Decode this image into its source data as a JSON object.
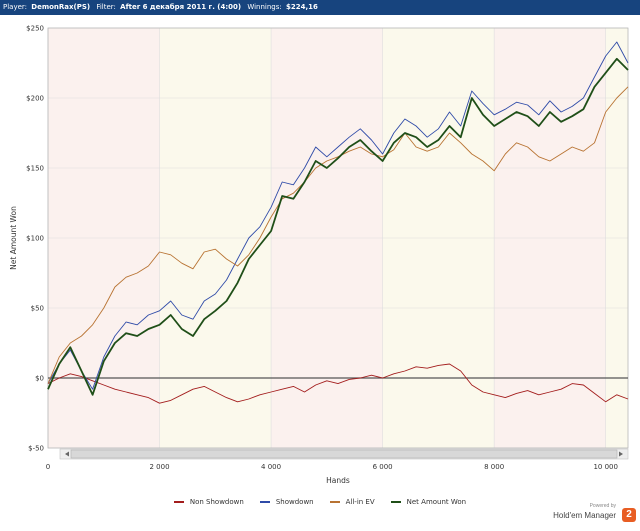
{
  "header": {
    "player_label": "Player:",
    "player_value": "DemonRax(PS)",
    "filter_label": "Filter:",
    "filter_value": "After 6 декабря 2011 г. (4:00)",
    "winnings_label": "Winnings:",
    "winnings_value": "$224,16"
  },
  "branding": {
    "powered_by": "Powered by",
    "product": "Hold'em Manager",
    "badge": "2"
  },
  "chart_data": {
    "type": "line",
    "xlabel": "Hands",
    "ylabel": "Net Amount Won",
    "xlim": [
      0,
      10400
    ],
    "ylim": [
      -50,
      250
    ],
    "x_ticks": [
      {
        "value": 0,
        "label": "0"
      },
      {
        "value": 2000,
        "label": "2 000"
      },
      {
        "value": 4000,
        "label": "4 000"
      },
      {
        "value": 6000,
        "label": "6 000"
      },
      {
        "value": 8000,
        "label": "8 000"
      },
      {
        "value": 10000,
        "label": "10 000"
      }
    ],
    "y_ticks": [
      {
        "value": -50,
        "label": "$-50"
      },
      {
        "value": 0,
        "label": "$0"
      },
      {
        "value": 50,
        "label": "$50"
      },
      {
        "value": 100,
        "label": "$100"
      },
      {
        "value": 150,
        "label": "$150"
      },
      {
        "value": 200,
        "label": "$200"
      },
      {
        "value": 250,
        "label": "$250"
      }
    ],
    "legend_position": "bottom-center",
    "grid": true,
    "series": [
      {
        "name": "Non Showdown",
        "color": "#a31d1d",
        "width": 0.9,
        "x": [
          0,
          200,
          400,
          600,
          800,
          1000,
          1200,
          1400,
          1600,
          1800,
          2000,
          2200,
          2400,
          2600,
          2800,
          3000,
          3200,
          3400,
          3600,
          3800,
          4000,
          4200,
          4400,
          4600,
          4800,
          5000,
          5200,
          5400,
          5600,
          5800,
          6000,
          6200,
          6400,
          6600,
          6800,
          7000,
          7200,
          7400,
          7600,
          7800,
          8000,
          8200,
          8400,
          8600,
          8800,
          9000,
          9200,
          9400,
          9600,
          9800,
          10000,
          10200,
          10400
        ],
        "y": [
          -4,
          0,
          3,
          1,
          -2,
          -5,
          -8,
          -10,
          -12,
          -14,
          -18,
          -16,
          -12,
          -8,
          -6,
          -10,
          -14,
          -17,
          -15,
          -12,
          -10,
          -8,
          -6,
          -10,
          -5,
          -2,
          -4,
          -1,
          0,
          2,
          0,
          3,
          5,
          8,
          7,
          9,
          10,
          5,
          -5,
          -10,
          -12,
          -14,
          -11,
          -9,
          -12,
          -10,
          -8,
          -4,
          -5,
          -11,
          -17,
          -12,
          -15
        ]
      },
      {
        "name": "Showdown",
        "color": "#2f4ba8",
        "width": 0.9,
        "x": [
          0,
          200,
          400,
          600,
          800,
          1000,
          1200,
          1400,
          1600,
          1800,
          2000,
          2200,
          2400,
          2600,
          2800,
          3000,
          3200,
          3400,
          3600,
          3800,
          4000,
          4200,
          4400,
          4600,
          4800,
          5000,
          5200,
          5400,
          5600,
          5800,
          6000,
          6200,
          6400,
          6600,
          6800,
          7000,
          7200,
          7400,
          7600,
          7800,
          8000,
          8200,
          8400,
          8600,
          8800,
          9000,
          9200,
          9400,
          9600,
          9800,
          10000,
          10200,
          10400
        ],
        "y": [
          -4,
          10,
          20,
          5,
          -8,
          15,
          30,
          40,
          38,
          45,
          48,
          55,
          45,
          42,
          55,
          60,
          70,
          85,
          100,
          108,
          122,
          140,
          138,
          150,
          165,
          158,
          165,
          172,
          178,
          170,
          160,
          175,
          185,
          180,
          172,
          178,
          190,
          180,
          205,
          196,
          188,
          192,
          197,
          195,
          188,
          198,
          190,
          194,
          200,
          215,
          230,
          240,
          225
        ]
      },
      {
        "name": "All-in EV",
        "color": "#b87332",
        "width": 0.9,
        "x": [
          0,
          200,
          400,
          600,
          800,
          1000,
          1200,
          1400,
          1600,
          1800,
          2000,
          2200,
          2400,
          2600,
          2800,
          3000,
          3200,
          3400,
          3600,
          3800,
          4000,
          4200,
          4400,
          4600,
          4800,
          5000,
          5200,
          5400,
          5600,
          5800,
          6000,
          6200,
          6400,
          6600,
          6800,
          7000,
          7200,
          7400,
          7600,
          7800,
          8000,
          8200,
          8400,
          8600,
          8800,
          9000,
          9200,
          9400,
          9600,
          9800,
          10000,
          10200,
          10400
        ],
        "y": [
          -4,
          15,
          25,
          30,
          38,
          50,
          65,
          72,
          75,
          80,
          90,
          88,
          82,
          78,
          90,
          92,
          85,
          80,
          88,
          100,
          115,
          128,
          132,
          140,
          150,
          155,
          158,
          162,
          165,
          160,
          158,
          163,
          175,
          165,
          162,
          165,
          175,
          168,
          160,
          155,
          148,
          160,
          168,
          165,
          158,
          155,
          160,
          165,
          162,
          168,
          190,
          200,
          208
        ]
      },
      {
        "name": "Net Amount Won",
        "color": "#1f4f18",
        "width": 1.8,
        "x": [
          0,
          200,
          400,
          600,
          800,
          1000,
          1200,
          1400,
          1600,
          1800,
          2000,
          2200,
          2400,
          2600,
          2800,
          3000,
          3200,
          3400,
          3600,
          3800,
          4000,
          4200,
          4400,
          4600,
          4800,
          5000,
          5200,
          5400,
          5600,
          5800,
          6000,
          6200,
          6400,
          6600,
          6800,
          7000,
          7200,
          7400,
          7600,
          7800,
          8000,
          8200,
          8400,
          8600,
          8800,
          9000,
          9200,
          9400,
          9600,
          9800,
          10000,
          10200,
          10400
        ],
        "y": [
          -8,
          10,
          22,
          5,
          -12,
          12,
          25,
          32,
          30,
          35,
          38,
          45,
          35,
          30,
          42,
          48,
          55,
          68,
          85,
          95,
          105,
          130,
          128,
          140,
          155,
          150,
          157,
          165,
          170,
          162,
          155,
          168,
          175,
          172,
          165,
          170,
          180,
          172,
          200,
          188,
          180,
          185,
          190,
          187,
          180,
          190,
          183,
          187,
          192,
          208,
          218,
          228,
          220
        ]
      }
    ]
  }
}
